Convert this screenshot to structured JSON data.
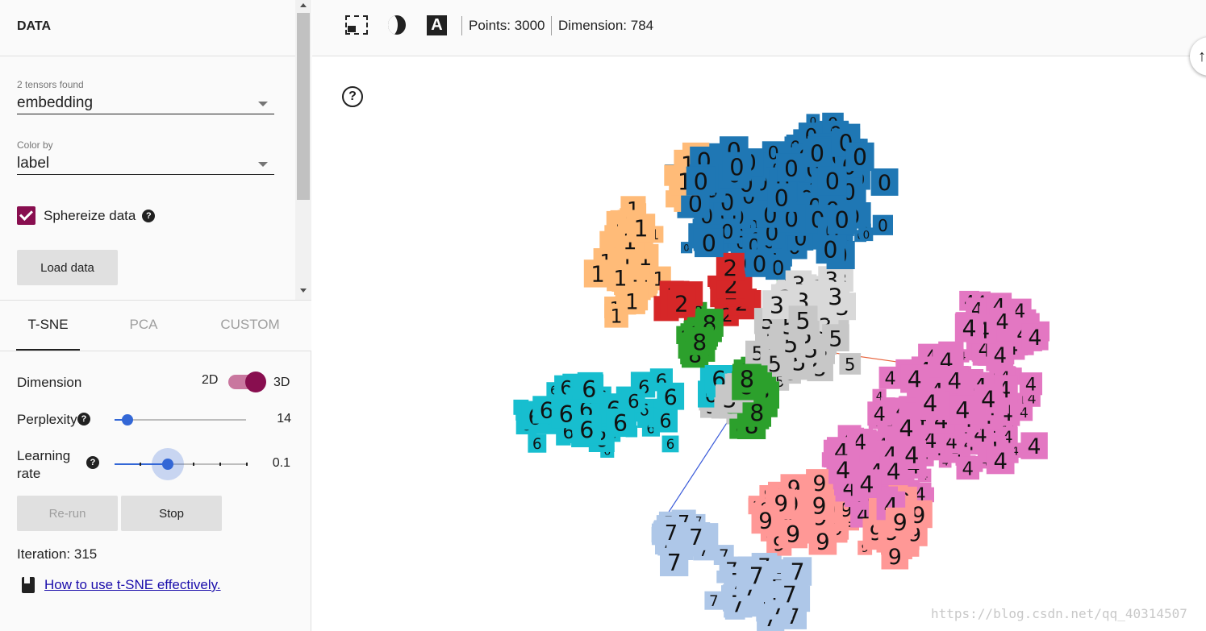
{
  "data_panel": {
    "title": "DATA",
    "tensors_label": "2 tensors found",
    "tensor_value": "embedding",
    "color_by_label": "Color by",
    "color_by_value": "label",
    "sphereize_label": "Sphereize data",
    "sphereize_checked": true,
    "load_button": "Load data"
  },
  "tabs": [
    {
      "label": "T-SNE",
      "active": true
    },
    {
      "label": "PCA",
      "active": false
    },
    {
      "label": "CUSTOM",
      "active": false
    }
  ],
  "tsne": {
    "dimension_label": "Dimension",
    "dim_option_2d": "2D",
    "dim_option_3d": "3D",
    "dimension_selected": "3D",
    "perplexity_label": "Perplexity",
    "perplexity_value": "14",
    "learning_rate_label_line1": "Learning",
    "learning_rate_label_line2": "rate",
    "learning_rate_value": "0.1",
    "rerun_button": "Re-run",
    "stop_button": "Stop",
    "iteration_text": "Iteration: 315",
    "howto_link": "How to use t-SNE effectively."
  },
  "toolbar": {
    "label_icon_glyph": "A",
    "points_text": "Points: 3000",
    "dimension_text": "Dimension: 784",
    "help_glyph": "?"
  },
  "colors": {
    "0": "#1f77b4",
    "1": "#ffbb78",
    "2": "#d62728",
    "3": "#d9d9d9",
    "4": "#e377c2",
    "5": "#c7c7c7",
    "6": "#17becf",
    "7": "#aec7e8",
    "8": "#2ca02c",
    "9": "#ff9896",
    "accent": "#880e4f",
    "slider": "#3367d6"
  },
  "clusters": [
    {
      "digit": "0",
      "color": "#1f77b4"
    },
    {
      "digit": "1",
      "color": "#ffbb78"
    },
    {
      "digit": "2",
      "color": "#d62728"
    },
    {
      "digit": "3",
      "color": "#d9d9d9"
    },
    {
      "digit": "4",
      "color": "#e377c2"
    },
    {
      "digit": "5",
      "color": "#c7c7c7"
    },
    {
      "digit": "6",
      "color": "#17becf"
    },
    {
      "digit": "7",
      "color": "#aec7e8"
    },
    {
      "digit": "8",
      "color": "#2ca02c"
    },
    {
      "digit": "9",
      "color": "#ff9896"
    }
  ],
  "watermark": "https://blog.csdn.net/qq_40314507"
}
